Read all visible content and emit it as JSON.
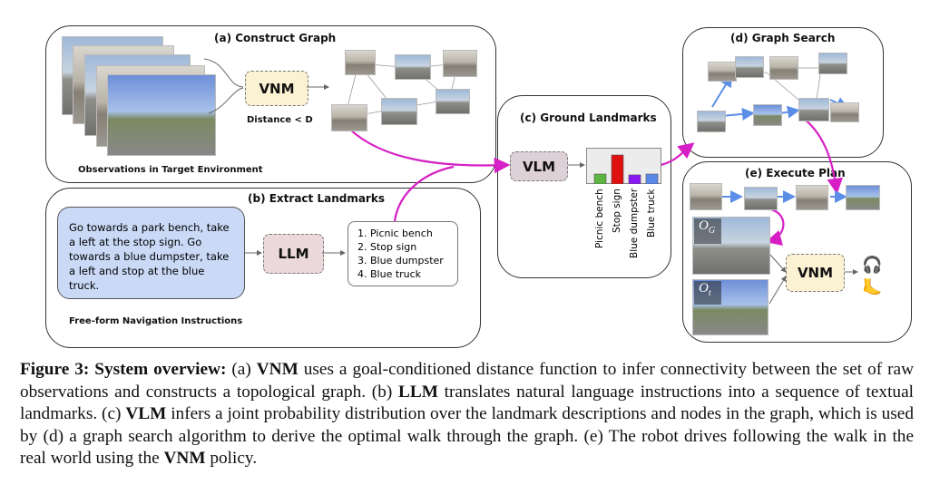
{
  "figure": {
    "panel_a": {
      "title": "(a) Construct Graph",
      "model": "VNM",
      "edge_label": "Distance < D",
      "observations_label": "Observations in Target Environment"
    },
    "panel_b": {
      "title": "(b) Extract Landmarks",
      "instruction": "Go towards a park bench, take a left at the stop sign. Go towards a blue dumpster, take a left and stop at the blue truck.",
      "instruction_label": "Free-form Navigation Instructions",
      "model": "LLM",
      "landmarks": [
        "1. Picnic bench",
        "2. Stop sign",
        "3. Blue dumpster",
        "4. Blue truck"
      ]
    },
    "panel_c": {
      "title": "(c) Ground Landmarks",
      "model": "VLM"
    },
    "panel_d": {
      "title": "(d) Graph Search"
    },
    "panel_e": {
      "title": "(e) Execute Plan",
      "model": "VNM",
      "goal_obs": "O",
      "goal_sub": "G",
      "cur_obs": "O",
      "cur_sub": "t"
    },
    "colors": {
      "arrow_magenta": "#d61fc4",
      "arrow_blue": "#5b8ee6",
      "vnm_fill": "#fbf1d3",
      "llm_fill": "#ead8da",
      "vlm_fill": "#ddd0d6",
      "bubble_fill": "#c9d9f6"
    }
  },
  "chart_data": {
    "type": "bar",
    "categories": [
      "Picnic bench",
      "Stop sign",
      "Blue dumpster",
      "Blue truck"
    ],
    "values": [
      0.12,
      0.35,
      0.11,
      0.12
    ],
    "colors": [
      "#5bb540",
      "#e01010",
      "#8a18f0",
      "#5a88ea"
    ],
    "title": "",
    "xlabel": "",
    "ylabel": ""
  },
  "caption": {
    "label": "Figure 3: System overview:",
    "segments": [
      {
        "t": " (a) ",
        "b": false
      },
      {
        "t": "VNM",
        "b": true
      },
      {
        "t": " uses a goal-conditioned distance function to infer connectivity between the set of raw observations and constructs a topological graph. (b) ",
        "b": false
      },
      {
        "t": "LLM",
        "b": true
      },
      {
        "t": " translates natural language instructions into a sequence of textual landmarks. (c) ",
        "b": false
      },
      {
        "t": "VLM",
        "b": true
      },
      {
        "t": " infers a joint probability distribution over the landmark descriptions and nodes in the graph, which is used by (d) a graph search algorithm to derive the optimal walk through the graph. (e) The robot drives following the walk in the real world using the ",
        "b": false
      },
      {
        "t": "VNM",
        "b": true
      },
      {
        "t": " policy.",
        "b": false
      }
    ]
  }
}
